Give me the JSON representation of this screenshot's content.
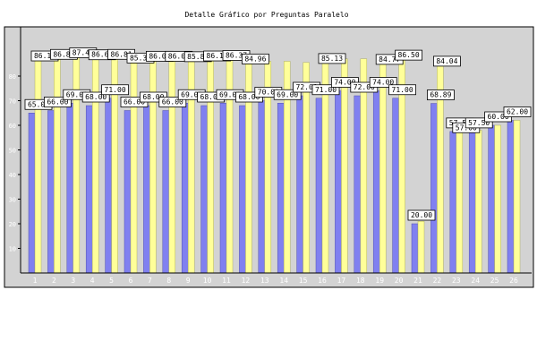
{
  "chart_data": {
    "type": "bar",
    "title": "Detalle Gráfico por Preguntas Paralelo",
    "ylim": [
      0,
      100
    ],
    "yticks": [
      10,
      20,
      30,
      40,
      50,
      60,
      70,
      80
    ],
    "categories": [
      "1",
      "2",
      "3",
      "4",
      "5",
      "6",
      "7",
      "8",
      "9",
      "10",
      "11",
      "12",
      "13",
      "14",
      "15",
      "16",
      "17",
      "18",
      "19",
      "20",
      "21",
      "22",
      "23",
      "24",
      "25",
      "26"
    ],
    "series": [
      {
        "values": [
          65.0,
          66.0,
          69.0,
          68.0,
          71.0,
          66.0,
          68.0,
          66.0,
          69.0,
          68.0,
          69.0,
          68.0,
          70.0,
          69.0,
          72.0,
          71.0,
          74.0,
          72.0,
          74.0,
          71.0,
          20.0,
          68.89,
          57.5,
          57.5,
          60.0,
          62.0
        ],
        "labels": [
          "65.00",
          "66.00",
          "69.00",
          "68.00",
          "71.00",
          "66.00",
          "68.00",
          "66.00",
          "69.00",
          "68.00",
          "69.00",
          "68.00",
          "70.00",
          "69.00",
          "72.00",
          "71.00",
          "74.00",
          "72.00",
          "74.00",
          "71.00",
          "20.00",
          "68.89",
          "57.50",
          "57.50",
          "60.00",
          "62.00"
        ]
      },
      {
        "values": [
          86.17,
          86.81,
          87.47,
          86.65,
          86.81,
          85.33,
          86.05,
          86.05,
          85.87,
          86.17,
          86.37,
          84.96,
          86.0,
          86.0,
          85.52,
          85.13,
          87.0,
          87.0,
          84.77,
          86.5,
          21.0,
          84.04,
          57.0,
          58.0,
          60.0,
          62.0
        ],
        "labels": [
          "86.17",
          "86.81",
          "87.47",
          "86.65",
          "86.81",
          "85.33",
          "86.05",
          "86.05",
          "85.87",
          "86.17",
          "86.37",
          "84.96",
          "",
          "",
          "",
          "85.13",
          "",
          "",
          "84.77",
          "86.50",
          "",
          "84.04",
          "57.00",
          "",
          "",
          ""
        ]
      }
    ],
    "colors": {
      "series1": "#8080f0",
      "series2": "#ffff99",
      "plot_bg": "#d3d3d3",
      "axis": "#000000"
    },
    "grid": false
  }
}
